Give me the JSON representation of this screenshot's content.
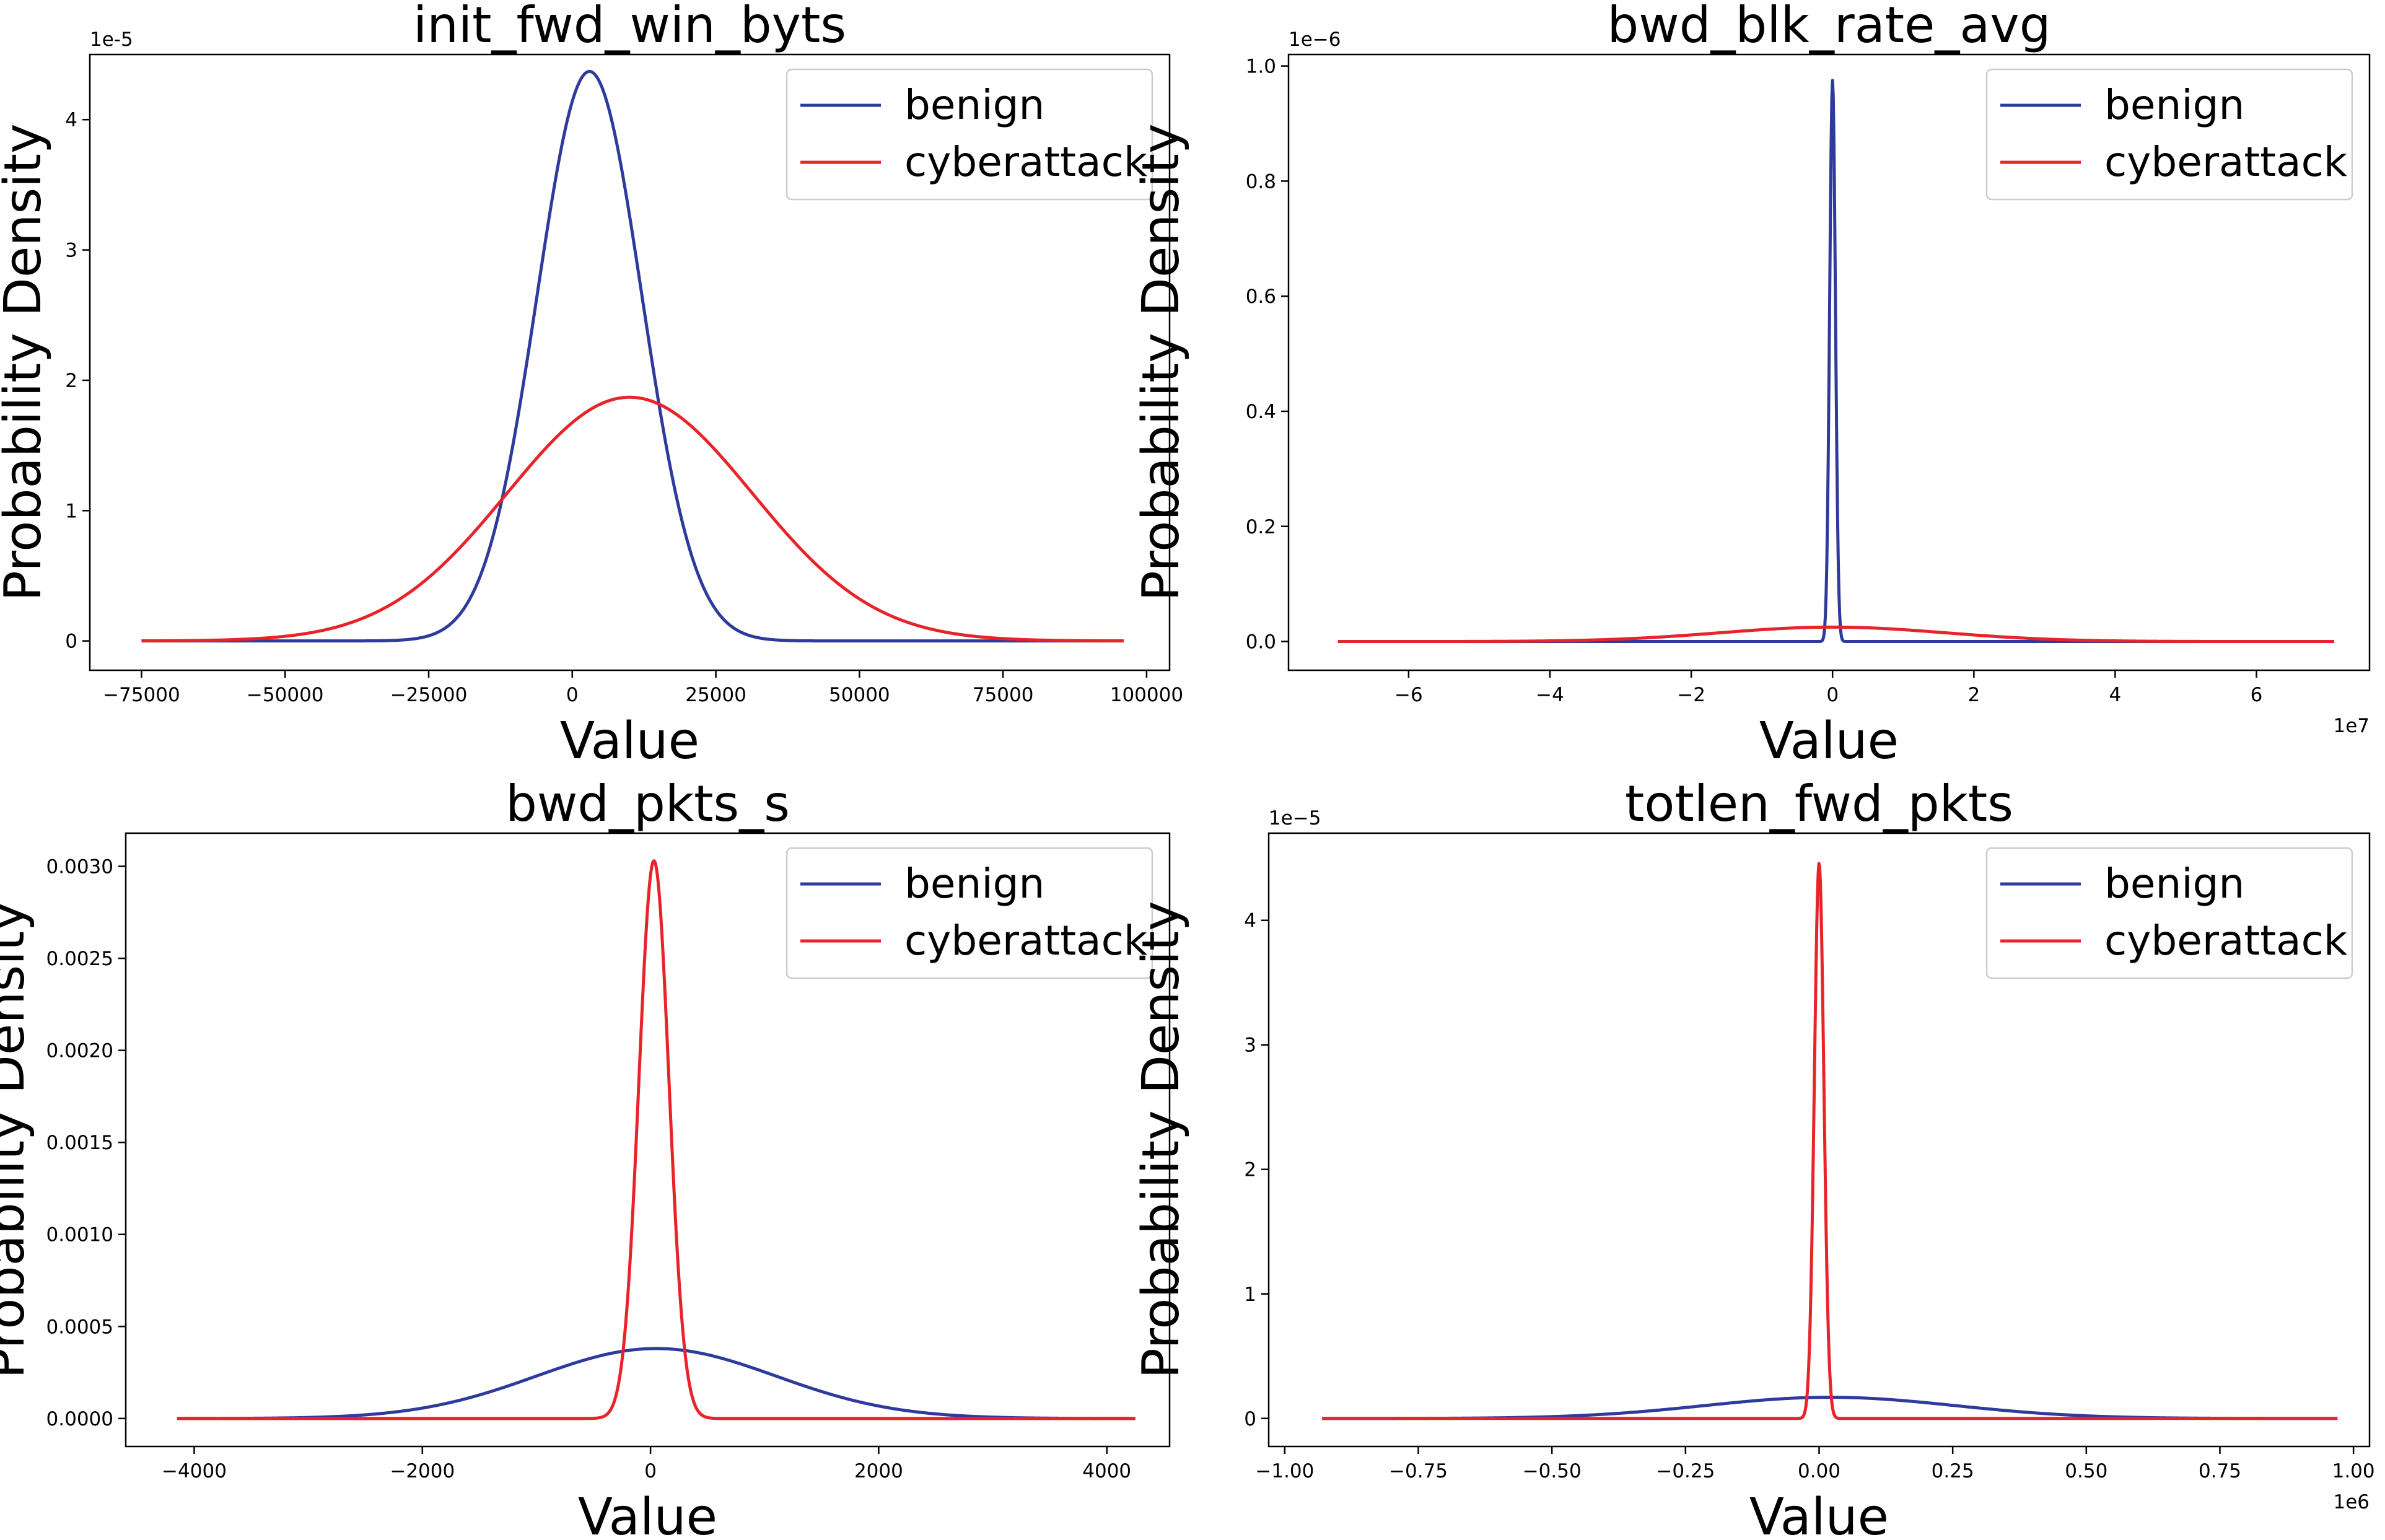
{
  "figure": {
    "xlabel": "Value",
    "ylabel": "Probability Density",
    "series_names": [
      "benign",
      "cyberattack"
    ],
    "colors": {
      "benign": "#2e3a9c",
      "cyberattack": "#e8242a"
    }
  },
  "chart_data": [
    {
      "type": "line",
      "title": "init_fwd_win_byts",
      "xlabel": "Value",
      "ylabel": "Probability Density",
      "xlim": [
        -84000,
        104000
      ],
      "ylim": [
        -0.225,
        4.5
      ],
      "y_offset_label": "1e-5",
      "x_offset_label": "",
      "xticks": [
        -75000,
        -50000,
        -25000,
        0,
        25000,
        50000,
        75000,
        100000
      ],
      "xtick_labels": [
        "−75000",
        "−50000",
        "−25000",
        "0",
        "25000",
        "50000",
        "75000",
        "100000"
      ],
      "yticks": [
        0,
        1,
        2,
        3,
        4
      ],
      "ytick_labels": [
        "0",
        "1",
        "2",
        "3",
        "4"
      ],
      "legend_position": "top-right",
      "series": [
        {
          "name": "benign",
          "x_range": [
            -75000,
            96000
          ],
          "mean": 3000,
          "peak": 4.37
        },
        {
          "name": "cyberattack",
          "x_range": [
            -75000,
            96000
          ],
          "mean": 10000,
          "peak": 1.87
        }
      ]
    },
    {
      "type": "line",
      "title": "bwd_blk_rate_avg",
      "xlabel": "Value",
      "ylabel": "Probability Density",
      "xlim": [
        -7.7,
        7.6
      ],
      "ylim": [
        -0.05,
        1.02
      ],
      "y_offset_label": "1e−6",
      "x_offset_label": "1e7",
      "xticks": [
        -6,
        -4,
        -2,
        0,
        2,
        4,
        6
      ],
      "xtick_labels": [
        "−6",
        "−4",
        "−2",
        "0",
        "2",
        "4",
        "6"
      ],
      "yticks": [
        0.0,
        0.2,
        0.4,
        0.6,
        0.8,
        1.0
      ],
      "ytick_labels": [
        "0.0",
        "0.2",
        "0.4",
        "0.6",
        "0.8",
        "1.0"
      ],
      "legend_position": "top-right",
      "series": [
        {
          "name": "benign",
          "x_range": [
            -7,
            7.1
          ],
          "mean": 0.0,
          "peak": 0.975
        },
        {
          "name": "cyberattack",
          "x_range": [
            -7,
            7.1
          ],
          "mean": 0.0,
          "peak": 0.025
        }
      ]
    },
    {
      "type": "line",
      "title": "bwd_pkts_s",
      "xlabel": "Value",
      "ylabel": "Probability Density",
      "xlim": [
        -4600,
        4550
      ],
      "ylim": [
        -0.000152,
        0.00318
      ],
      "y_offset_label": "",
      "x_offset_label": "",
      "xticks": [
        -4000,
        -2000,
        0,
        2000,
        4000
      ],
      "xtick_labels": [
        "−4000",
        "−2000",
        "0",
        "2000",
        "4000"
      ],
      "yticks": [
        0.0,
        0.0005,
        0.001,
        0.0015,
        0.002,
        0.0025,
        0.003
      ],
      "ytick_labels": [
        "0.0000",
        "0.0005",
        "0.0010",
        "0.0015",
        "0.0020",
        "0.0025",
        "0.0030"
      ],
      "legend_position": "top-right",
      "series": [
        {
          "name": "benign",
          "x_range": [
            -4150,
            4250
          ],
          "mean": 50,
          "peak": 0.00038
        },
        {
          "name": "cyberattack",
          "x_range": [
            -4150,
            4250
          ],
          "mean": 30,
          "peak": 0.00303
        }
      ]
    },
    {
      "type": "line",
      "title": "totlen_fwd_pkts",
      "xlabel": "Value",
      "ylabel": "Probability Density",
      "xlim": [
        -1.03,
        1.03
      ],
      "ylim": [
        -0.225,
        4.7
      ],
      "y_offset_label": "1e−5",
      "x_offset_label": "1e6",
      "xticks": [
        -1.0,
        -0.75,
        -0.5,
        -0.25,
        0.0,
        0.25,
        0.5,
        0.75,
        1.0
      ],
      "xtick_labels": [
        "−1.00",
        "−0.75",
        "−0.50",
        "−0.25",
        "0.00",
        "0.25",
        "0.50",
        "0.75",
        "1.00"
      ],
      "yticks": [
        0,
        1,
        2,
        3,
        4
      ],
      "ytick_labels": [
        "0",
        "1",
        "2",
        "3",
        "4"
      ],
      "legend_position": "top-right",
      "series": [
        {
          "name": "benign",
          "x_range": [
            -0.93,
            0.97
          ],
          "mean": 0.02,
          "peak": 0.17
        },
        {
          "name": "cyberattack",
          "x_range": [
            -0.93,
            0.97
          ],
          "mean": 0.0,
          "peak": 4.46
        }
      ]
    }
  ]
}
